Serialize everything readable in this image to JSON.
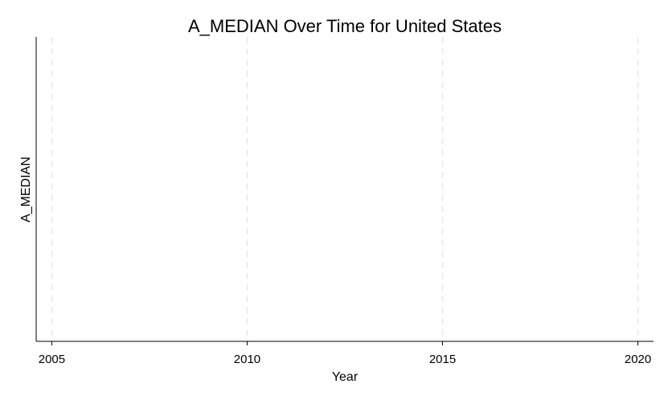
{
  "chart_data": {
    "type": "line",
    "title": "A_MEDIAN Over Time for United States",
    "xlabel": "Year",
    "ylabel": "A_MEDIAN",
    "xlim": [
      2004.6,
      2020.4
    ],
    "x_ticks": [
      2005,
      2010,
      2015,
      2020
    ],
    "x_tick_labels": [
      "2005",
      "2010",
      "2015",
      "2020"
    ],
    "grid": {
      "x": true,
      "y": false,
      "style": "dashed"
    },
    "legend": "none",
    "series": [],
    "colors": {
      "background": "#ffffff",
      "axis": "#000000",
      "grid": "#e8e8e8",
      "text": "#000000"
    }
  }
}
